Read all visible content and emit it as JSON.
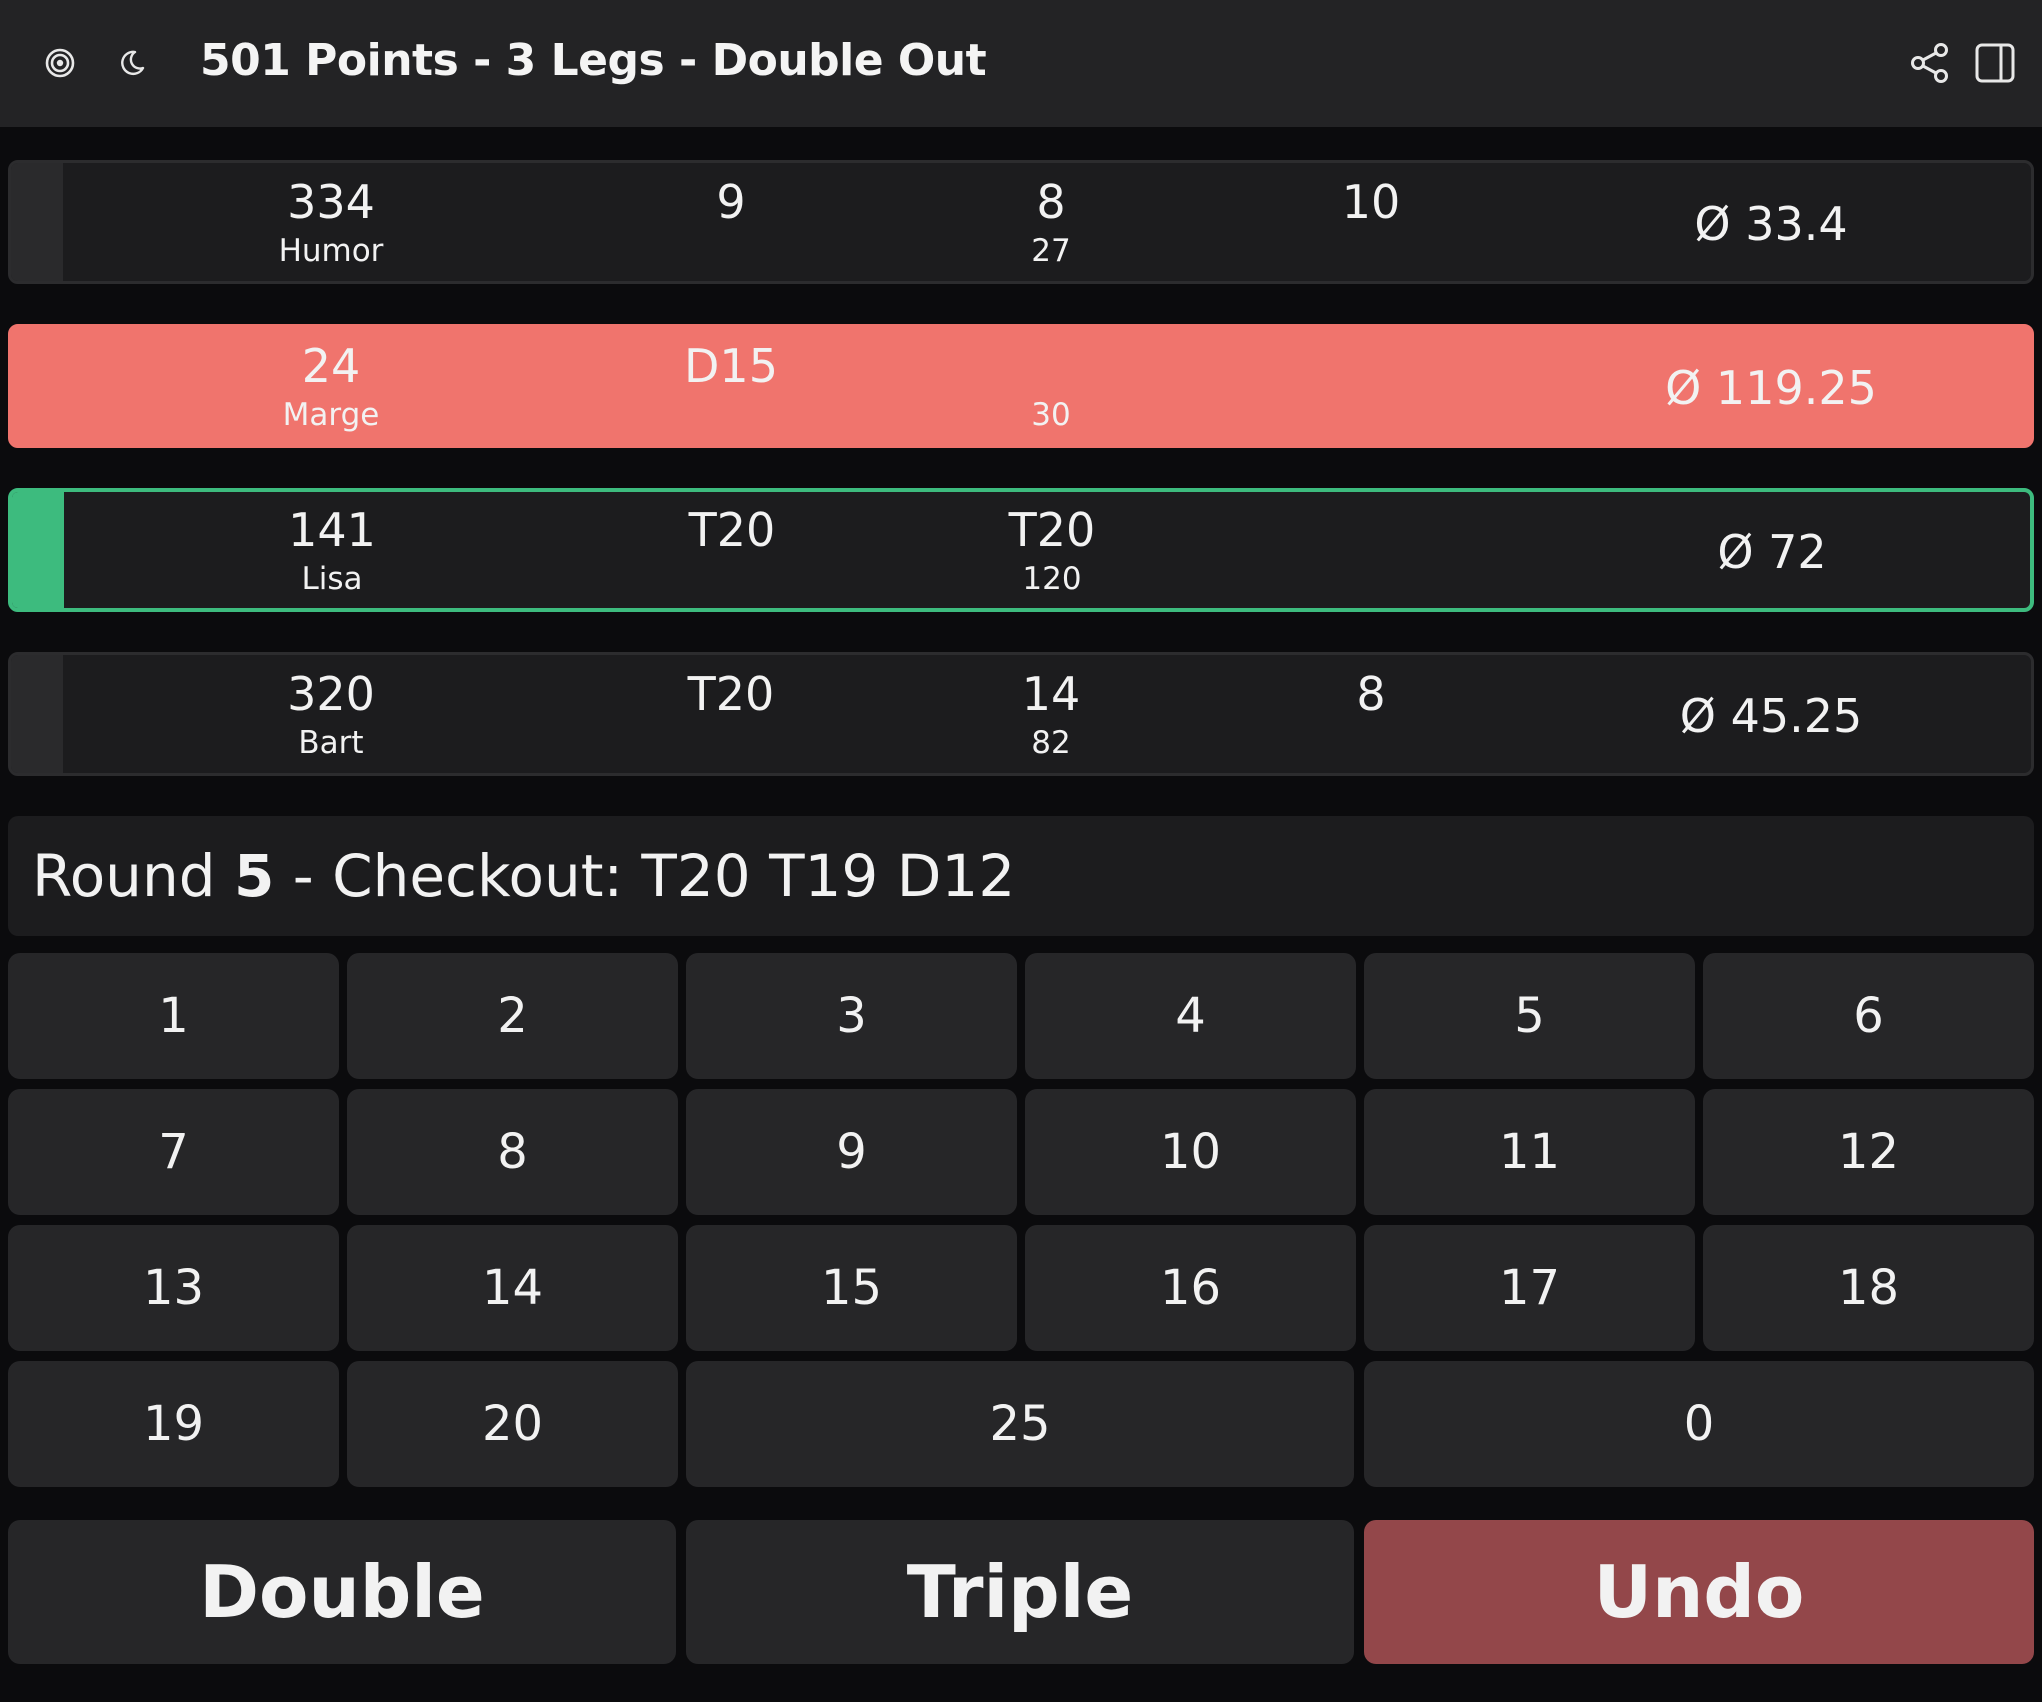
{
  "header": {
    "title": "501 Points - 3 Legs - Double Out",
    "icons": [
      "target-icon",
      "moon-icon",
      "share-icon",
      "sidebar-icon"
    ]
  },
  "players": [
    {
      "score": "334",
      "name": "Humor",
      "dart1": "9",
      "dart2": "8",
      "dart3": "10",
      "round_total": "27",
      "average": "Ø 33.4",
      "state": "normal"
    },
    {
      "score": "24",
      "name": "Marge",
      "dart1": "D15",
      "dart2": "",
      "dart3": "",
      "round_total": "30",
      "average": "Ø 119.25",
      "state": "finished"
    },
    {
      "score": "141",
      "name": "Lisa",
      "dart1": "T20",
      "dart2": "T20",
      "dart3": "",
      "round_total": "120",
      "average": "Ø 72",
      "state": "active"
    },
    {
      "score": "320",
      "name": "Bart",
      "dart1": "T20",
      "dart2": "14",
      "dart3": "8",
      "round_total": "82",
      "average": "Ø 45.25",
      "state": "normal"
    }
  ],
  "round": {
    "prefix": "Round",
    "number": "5",
    "checkout": "- Checkout: T20 T19 D12"
  },
  "keypad": {
    "numbers": [
      "1",
      "2",
      "3",
      "4",
      "5",
      "6",
      "7",
      "8",
      "9",
      "10",
      "11",
      "12",
      "13",
      "14",
      "15",
      "16",
      "17",
      "18",
      "19",
      "20"
    ],
    "bull": "25",
    "zero": "0"
  },
  "actions": {
    "double": "Double",
    "triple": "Triple",
    "undo": "Undo"
  },
  "colors": {
    "background": "#0b0b0d",
    "card": "#1c1c1e",
    "active_accent": "#3dbb7e",
    "finished": "#f0746d",
    "undo": "#93474a",
    "key": "#262628"
  }
}
